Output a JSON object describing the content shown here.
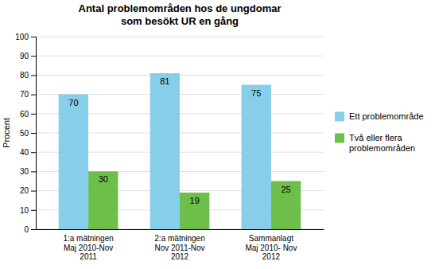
{
  "chart_data": {
    "type": "bar",
    "title": "Antal problemområden hos de ungdomar\nsom besökt UR en gång",
    "y_label": "Procent",
    "categories": [
      "1:a mätningen\nMaj 2010-Nov\n2011",
      "2:a mätningen\nNov 2011-Nov\n2012",
      "Sammanlagt\nMaj 2010- Nov\n2012"
    ],
    "series": [
      {
        "name": "Ett problemområde",
        "color": "#87CEEB",
        "values": [
          70,
          81,
          75
        ]
      },
      {
        "name": "Två eller flera\nproblemområden",
        "color": "#6DBF4A",
        "values": [
          30,
          19,
          25
        ]
      }
    ],
    "ylim": [
      0,
      100
    ],
    "yticks": [
      0,
      10,
      20,
      30,
      40,
      50,
      60,
      70,
      80,
      90,
      100
    ],
    "grid": true,
    "legend": "right",
    "data_labels": true
  }
}
